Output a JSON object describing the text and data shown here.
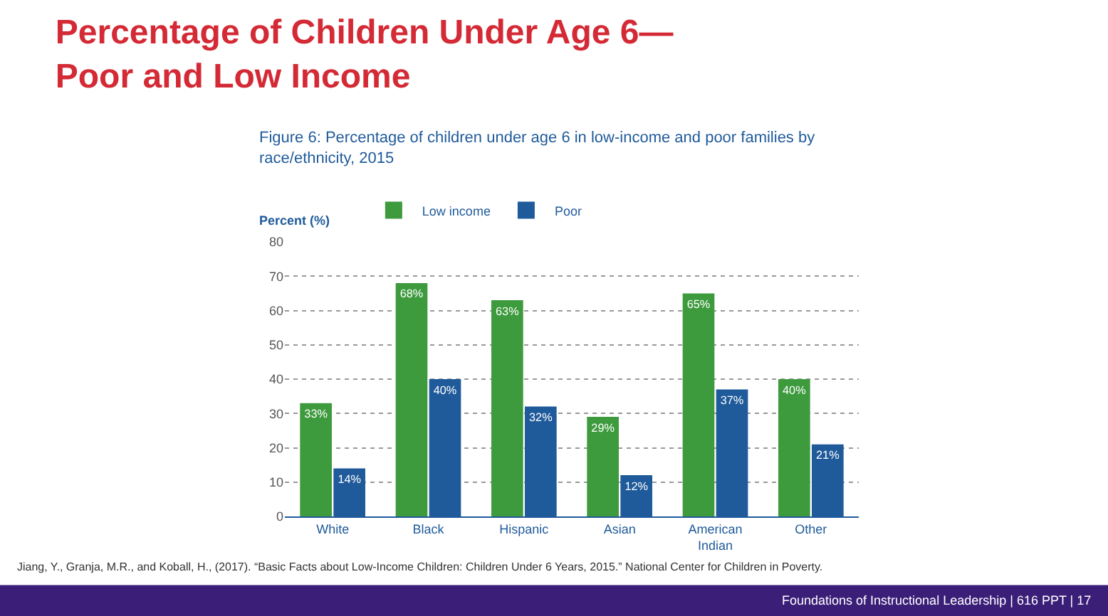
{
  "chart_data": {
    "type": "bar",
    "title": "Percentage of Children Under Age 6—\nPoor and Low Income",
    "subtitle": "Figure 6: Percentage of children under age 6 in low-income and poor families by\nrace/ethnicity, 2015",
    "ylabel": "Percent (%)",
    "categories": [
      "White",
      "Black",
      "Hispanic",
      "Asian",
      "American\nIndian",
      "Other"
    ],
    "series": [
      {
        "name": "Low income",
        "color": "#3d9a3d",
        "values": [
          33,
          68,
          63,
          29,
          65,
          40
        ],
        "value_labels": [
          "33%",
          "68%",
          "63%",
          "29%",
          "65%",
          "40%"
        ]
      },
      {
        "name": "Poor",
        "color": "#1f5a9a",
        "values": [
          14,
          40,
          32,
          12,
          37,
          21
        ],
        "value_labels": [
          "14%",
          "40%",
          "32%",
          "12%",
          "37%",
          "21%"
        ]
      }
    ],
    "ylim": [
      0,
      80
    ],
    "yticks": [
      0,
      10,
      20,
      30,
      40,
      50,
      60,
      70,
      80
    ],
    "grid": "y",
    "legend": "top left",
    "annotations": [
      "Jiang, Y., Granja, M.R., and Koball, H., (2017). “Basic Facts about Low-Income Children: Children Under 6 Years, 2015.” National Center for Children in Poverty.",
      "Foundations of Instructional Leadership | 616 PPT | 17"
    ]
  }
}
